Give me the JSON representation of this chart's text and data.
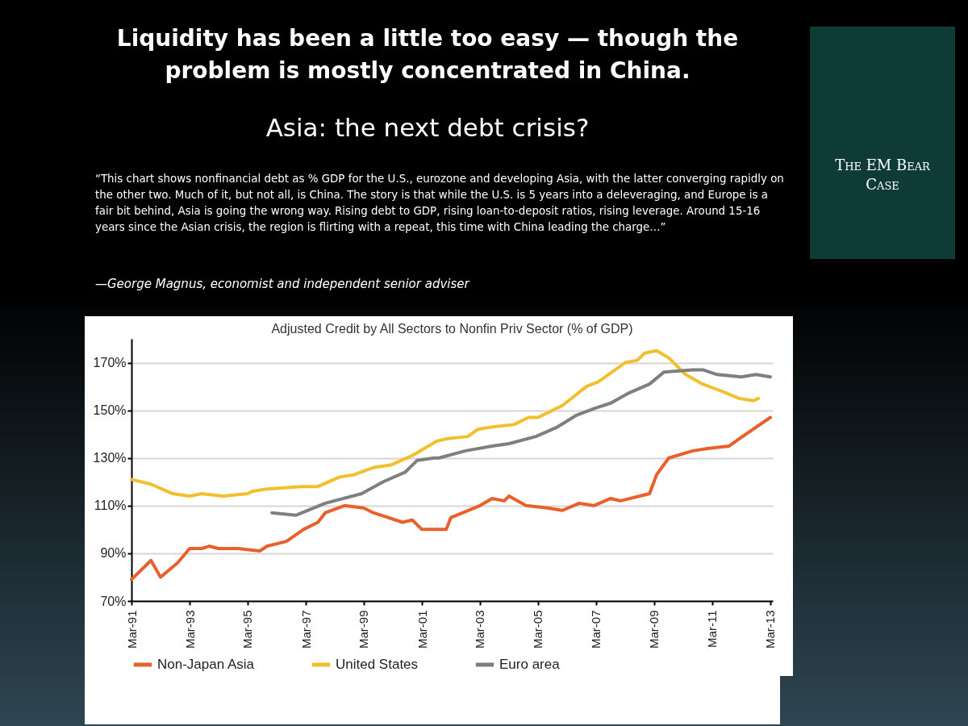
{
  "chart_data": {
    "type": "line",
    "title": "Liquidity has been a little too easy — though the problem is mostly concentrated in China.",
    "subtitle": "Asia: the next debt crisis?",
    "annotations": [
      "“This chart shows nonfinancial debt as % GDP for the U.S., eurozone and developing Asia, with the latter converging rapidly on the other two. Much of it, but not all, is China. The story is that while the U.S. is 5 years into a deleveraging, and Europe is a fair bit behind, Asia is going the wrong way. Rising debt to GDP, rising loan-to-deposit ratios, rising leverage. Around 15-16 years since the Asian crisis, the region is flirting with a repeat, this time with China leading the charge…”",
      "—George Magnus, economist and independent senior adviser",
      "Adjusted Credit by All Sectors to Nonfin Priv Sector (% of GDP)",
      "The EM Bear Case"
    ],
    "series": [
      {
        "name": "Non-Japan Asia",
        "color": "#e8602c",
        "x": [
          "1991-03",
          "1991-11",
          "1992-03",
          "1992-10",
          "1993-03",
          "1993-08",
          "1993-11",
          "1994-03",
          "1994-11",
          "1995-08",
          "1995-11",
          "1996-07",
          "1997-02",
          "1997-08",
          "1997-11",
          "1998-07",
          "1999-03",
          "1999-07",
          "2000-07",
          "2000-11",
          "2001-03",
          "2002-01",
          "2002-03",
          "2003-03",
          "2003-08",
          "2004-01",
          "2004-03",
          "2004-10",
          "2005-07",
          "2006-01",
          "2006-08",
          "2007-02",
          "2007-09",
          "2008-01",
          "2009-01",
          "2009-04",
          "2009-09",
          "2010-07",
          "2011-01",
          "2011-10",
          "2012-02",
          "2013-03"
        ],
        "values": [
          79,
          87,
          80,
          86,
          92,
          92,
          93,
          92,
          92,
          91,
          93,
          95,
          100,
          103,
          107,
          110,
          109,
          107,
          103,
          104,
          100,
          100,
          105,
          110,
          113,
          112,
          114,
          110,
          109,
          108,
          111,
          110,
          113,
          112,
          115,
          123,
          130,
          133,
          134,
          135,
          138,
          147
        ]
      },
      {
        "name": "United States",
        "color": "#f2bf2e",
        "x": [
          "1991-03",
          "1991-11",
          "1992-08",
          "1993-03",
          "1993-08",
          "1994-05",
          "1995-03",
          "1995-05",
          "1995-11",
          "1997-01",
          "1997-08",
          "1998-05",
          "1998-11",
          "1999-07",
          "2000-02",
          "2000-11",
          "2001-09",
          "2002-01",
          "2002-10",
          "2003-02",
          "2003-08",
          "2004-05",
          "2004-11",
          "2005-03",
          "2006-01",
          "2006-11",
          "2007-04",
          "2008-03",
          "2008-08",
          "2008-11",
          "2009-04",
          "2009-09",
          "2010-04",
          "2010-11",
          "2011-07",
          "2012-02",
          "2012-08",
          "2012-10"
        ],
        "values": [
          121,
          119,
          115,
          114,
          115,
          114,
          115,
          116,
          117,
          118,
          118,
          122,
          123,
          126,
          127,
          131,
          137,
          138,
          139,
          142,
          143,
          144,
          147,
          147,
          152,
          160,
          162,
          170,
          171,
          174,
          175,
          172,
          165,
          161,
          158,
          155,
          154,
          155
        ]
      },
      {
        "name": "Euro area",
        "color": "#7f7f7f",
        "x": [
          "1996-01",
          "1996-11",
          "1997-11",
          "1999-02",
          "1999-11",
          "2000-08",
          "2001-01",
          "2001-08",
          "2001-10",
          "2002-09",
          "2003-08",
          "2004-03",
          "2005-02",
          "2005-11",
          "2006-07",
          "2007-03",
          "2007-09",
          "2008-04",
          "2009-01",
          "2009-07",
          "2010-07",
          "2010-11",
          "2011-05",
          "2012-03",
          "2012-09",
          "2013-03"
        ],
        "values": [
          107,
          106,
          111,
          115,
          120,
          124,
          129,
          130,
          130,
          133,
          135,
          136,
          139,
          143,
          148,
          151,
          153,
          157,
          161,
          166,
          167,
          167,
          165,
          164,
          165,
          164
        ]
      }
    ],
    "xlim": [
      "1991-03",
      "2013-04"
    ],
    "xticks": [
      {
        "value": "1991-03",
        "label": "Mar-91"
      },
      {
        "value": "1993-03",
        "label": "Mar-93"
      },
      {
        "value": "1995-03",
        "label": "Mar-95"
      },
      {
        "value": "1997-03",
        "label": "Mar-97"
      },
      {
        "value": "1999-03",
        "label": "Mar-99"
      },
      {
        "value": "2001-03",
        "label": "Mar-01"
      },
      {
        "value": "2003-03",
        "label": "Mar-03"
      },
      {
        "value": "2005-03",
        "label": "Mar-05"
      },
      {
        "value": "2007-03",
        "label": "Mar-07"
      },
      {
        "value": "2009-03",
        "label": "Mar-09"
      },
      {
        "value": "2011-03",
        "label": "Mar-11"
      },
      {
        "value": "2013-03",
        "label": "Mar-13"
      }
    ],
    "ylim": [
      70,
      180
    ],
    "yticks": [
      {
        "value": 70,
        "label": "70%"
      },
      {
        "value": 90,
        "label": "90%"
      },
      {
        "value": 110,
        "label": "110%"
      },
      {
        "value": 130,
        "label": "130%"
      },
      {
        "value": 150,
        "label": "150%"
      },
      {
        "value": 170,
        "label": "170%"
      }
    ],
    "grid": "y",
    "legend": "bottom",
    "marker": "none",
    "line_style": "solid"
  }
}
